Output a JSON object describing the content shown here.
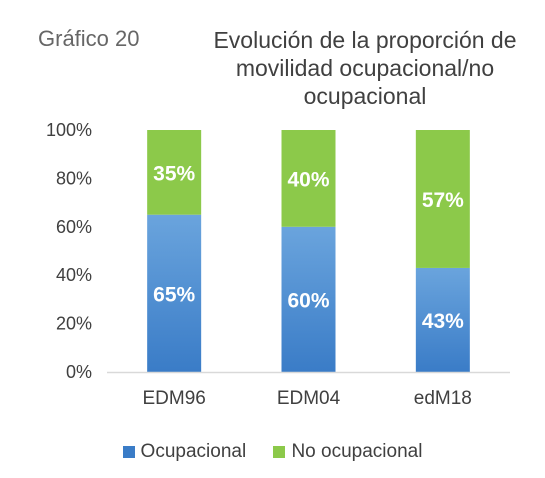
{
  "figure": {
    "label": "Gráfico 20",
    "title_lines": [
      "Evolución de la proporción de",
      "movilidad ocupacional/no",
      "ocupacional"
    ]
  },
  "colors": {
    "ocupacional_top": "#6aa4dd",
    "ocupacional_bottom": "#3a7cc7",
    "no_ocupacional": "#8cc94a",
    "axis": "#d9d9d9"
  },
  "chart_data": {
    "type": "bar",
    "stacked": true,
    "title": "Evolución de la proporción de movilidad ocupacional/no ocupacional",
    "categories": [
      "EDM96",
      "EDM04",
      "edM18"
    ],
    "series": [
      {
        "name": "Ocupacional",
        "values": [
          65,
          60,
          43
        ],
        "labels": [
          "65%",
          "60%",
          "43%"
        ]
      },
      {
        "name": "No ocupacional",
        "values": [
          35,
          40,
          57
        ],
        "labels": [
          "35%",
          "40%",
          "57%"
        ]
      }
    ],
    "ylim": [
      0,
      100
    ],
    "yticks": [
      "0%",
      "20%",
      "40%",
      "60%",
      "80%",
      "100%"
    ],
    "legend": "bottom",
    "grid": false
  }
}
